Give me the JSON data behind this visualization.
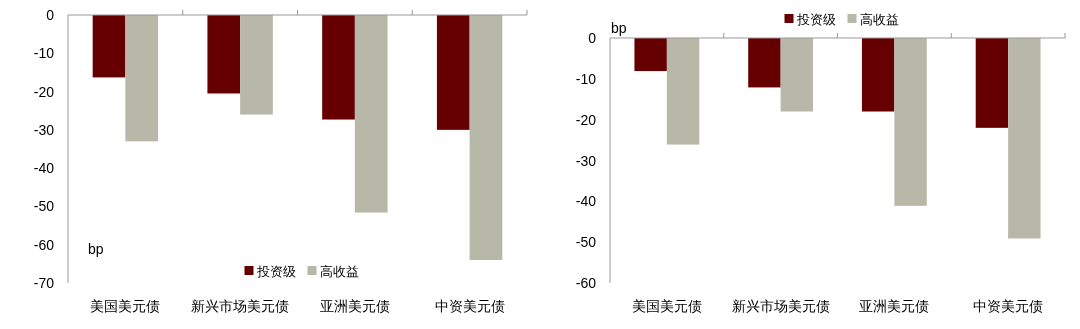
{
  "chart_data": [
    {
      "type": "bar",
      "ylabel": "bp",
      "categories": [
        "美国美元债",
        "新兴市场美元债",
        "亚洲美元债",
        "中资美元债"
      ],
      "series": [
        {
          "name": "投资级",
          "color": "#660000",
          "values": [
            -16.3,
            -20.5,
            -27.3,
            -30
          ]
        },
        {
          "name": "高收益",
          "color": "#b8b8a8",
          "values": [
            -33,
            -26,
            -51.6,
            -64
          ]
        }
      ],
      "ylim": [
        -70,
        0
      ],
      "yticks": [
        0,
        -10,
        -20,
        -30,
        -40,
        -50,
        -60,
        -70
      ],
      "grid": false,
      "legend": "bottom"
    },
    {
      "type": "bar",
      "ylabel": "bp",
      "categories": [
        "美国美元债",
        "新兴市场美元债",
        "亚洲美元债",
        "中资美元债"
      ],
      "series": [
        {
          "name": "投资级",
          "color": "#660000",
          "values": [
            -8.1,
            -12.1,
            -18,
            -22
          ]
        },
        {
          "name": "高收益",
          "color": "#b8b8a8",
          "values": [
            -26.1,
            -18,
            -41.1,
            -49.1
          ]
        }
      ],
      "ylim": [
        -60,
        0
      ],
      "yticks": [
        0,
        -10,
        -20,
        -30,
        -40,
        -50,
        -60
      ],
      "grid": false,
      "legend": "top"
    }
  ]
}
